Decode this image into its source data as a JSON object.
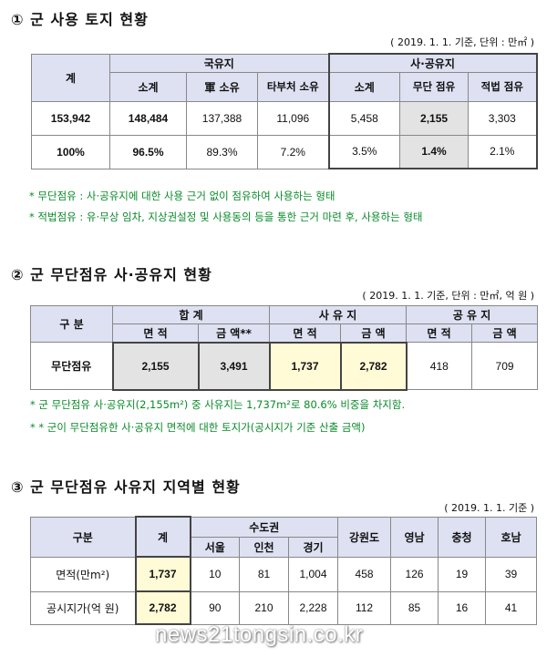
{
  "section1": {
    "title": "① 군 사용 토지 현황",
    "note": "( 2019. 1. 1. 기준, 단위 : 만㎡ )",
    "headers": {
      "total": "계",
      "national": "국유지",
      "private_public": "사·공유지",
      "subtotal": "소계",
      "military_owned": "軍 소유",
      "other_agency": "타부처 소유",
      "subtotal2": "소계",
      "unauthorized": "무단 점유",
      "legal": "적법 점유"
    },
    "rows": [
      [
        "153,942",
        "148,484",
        "137,388",
        "11,096",
        "5,458",
        "2,155",
        "3,303"
      ],
      [
        "100%",
        "96.5%",
        "89.3%",
        "7.2%",
        "3.5%",
        "1.4%",
        "2.1%"
      ]
    ],
    "footnotes": [
      "* 무단점유 : 사·공유지에 대한 사용 근거 없이 점유하여 사용하는 형태",
      "* 적법점유 : 유·무상 임차, 지상권설정 및 사용동의 등을 통한 근거 마련 후, 사용하는 형태"
    ]
  },
  "section2": {
    "title": "② 군 무단점유 사·공유지 현황",
    "note": "( 2019. 1. 1. 기준, 단위 : 만㎡, 억 원 )",
    "headers": {
      "category": "구 분",
      "sum": "합 계",
      "private": "사 유 지",
      "public": "공 유 지",
      "area": "면 적",
      "amount": "금 액",
      "amount_star": "금 액**"
    },
    "row_label": "무단점유",
    "values": [
      "2,155",
      "3,491",
      "1,737",
      "2,782",
      "418",
      "709"
    ],
    "footnotes": [
      "* 군 무단점유 사·공유지(2,155m²) 중 사유지는 1,737m²로 80.6% 비중을 차지함.",
      "* * 군이 무단점유한 사·공유지 면적에 대한 토지가(공시지가 기준 산출 금액)"
    ]
  },
  "section3": {
    "title": "③ 군 무단점유 사유지 지역별 현황",
    "note": "( 2019. 1. 1. 기준 )",
    "headers": {
      "category": "구분",
      "total": "계",
      "capital": "수도권",
      "regions": [
        "서울",
        "인천",
        "경기",
        "강원도",
        "영남",
        "충청",
        "호남"
      ]
    },
    "rows": [
      {
        "label": "면적(만m²)",
        "total": "1,737",
        "values": [
          "10",
          "81",
          "1,004",
          "458",
          "126",
          "19",
          "39"
        ]
      },
      {
        "label": "공시지가(억 원)",
        "total": "2,782",
        "values": [
          "90",
          "210",
          "2,228",
          "112",
          "85",
          "16",
          "41"
        ]
      }
    ]
  },
  "watermark": "news21tongsin.co.kr",
  "colors": {
    "header_bg": "#dde1f2",
    "highlight_gray": "#e3e3e3",
    "highlight_yellow": "#fffbd6",
    "footnote_green": "#0a8a2a"
  }
}
